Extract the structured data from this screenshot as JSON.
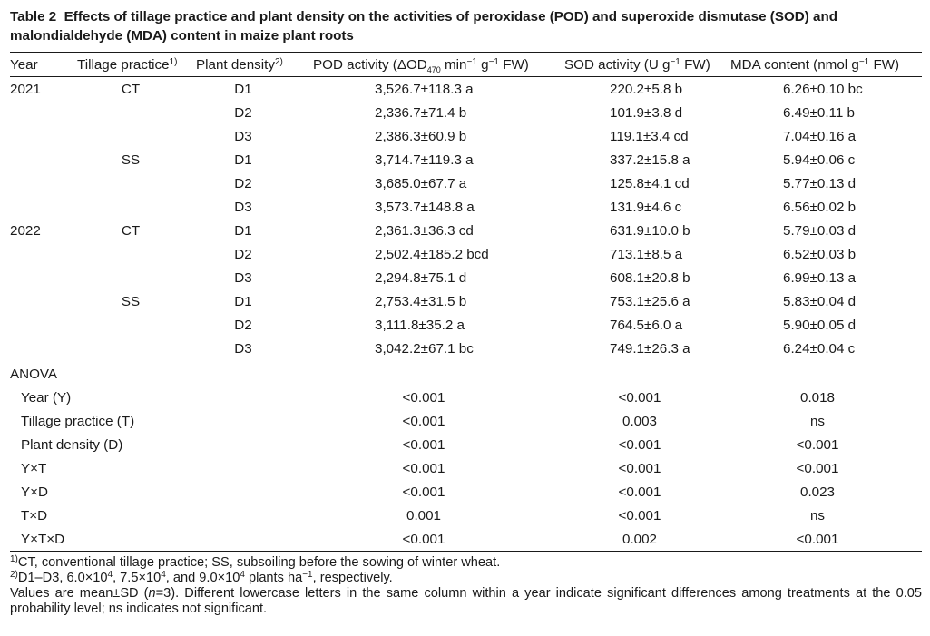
{
  "caption": {
    "label": "Table 2",
    "text": "Effects of tillage practice and plant density on the activities of peroxidase (POD) and superoxide dismutase (SOD) and malondialdehyde (MDA) content in maize plant roots"
  },
  "headers": {
    "year": "Year",
    "tillage": "Tillage practice",
    "tillage_sup": "1)",
    "density": "Plant density",
    "density_sup": "2)",
    "pod_pre": "POD activity (ΔOD",
    "pod_sub": "470",
    "pod_mid": " min",
    "pod_sup1": "−1",
    "pod_mid2": " g",
    "pod_sup2": "−1",
    "pod_post": " FW)",
    "sod_pre": "SOD activity (U g",
    "sod_sup": "−1",
    "sod_post": " FW)",
    "mda_pre": "MDA content (nmol g",
    "mda_sup": "−1",
    "mda_post": " FW)"
  },
  "rows": [
    {
      "year": "2021",
      "tillage": "CT",
      "density": "D1",
      "pod": "3,526.7±118.3 a",
      "sod": "220.2±5.8 b",
      "mda": "6.26±0.10 bc"
    },
    {
      "year": "",
      "tillage": "",
      "density": "D2",
      "pod": "2,336.7±71.4 b",
      "sod": "101.9±3.8 d",
      "mda": "6.49±0.11 b"
    },
    {
      "year": "",
      "tillage": "",
      "density": "D3",
      "pod": "2,386.3±60.9 b",
      "sod": "119.1±3.4 cd",
      "mda": "7.04±0.16 a"
    },
    {
      "year": "",
      "tillage": "SS",
      "density": "D1",
      "pod": "3,714.7±119.3 a",
      "sod": "337.2±15.8 a",
      "mda": "5.94±0.06 c"
    },
    {
      "year": "",
      "tillage": "",
      "density": "D2",
      "pod": "3,685.0±67.7 a",
      "sod": "125.8±4.1 cd",
      "mda": "5.77±0.13 d"
    },
    {
      "year": "",
      "tillage": "",
      "density": "D3",
      "pod": "3,573.7±148.8 a",
      "sod": "131.9±4.6 c",
      "mda": "6.56±0.02 b"
    },
    {
      "year": "2022",
      "tillage": "CT",
      "density": "D1",
      "pod": "2,361.3±36.3 cd",
      "sod": "631.9±10.0 b",
      "mda": "5.79±0.03 d"
    },
    {
      "year": "",
      "tillage": "",
      "density": "D2",
      "pod": "2,502.4±185.2 bcd",
      "sod": "713.1±8.5 a",
      "mda": "6.52±0.03 b"
    },
    {
      "year": "",
      "tillage": "",
      "density": "D3",
      "pod": "2,294.8±75.1 d",
      "sod": "608.1±20.8 b",
      "mda": "6.99±0.13 a"
    },
    {
      "year": "",
      "tillage": "SS",
      "density": "D1",
      "pod": "2,753.4±31.5 b",
      "sod": "753.1±25.6 a",
      "mda": "5.83±0.04 d"
    },
    {
      "year": "",
      "tillage": "",
      "density": "D2",
      "pod": "3,111.8±35.2 a",
      "sod": "764.5±6.0 a",
      "mda": "5.90±0.05 d"
    },
    {
      "year": "",
      "tillage": "",
      "density": "D3",
      "pod": "3,042.2±67.1 bc",
      "sod": "749.1±26.3 a",
      "mda": "6.24±0.04 c"
    }
  ],
  "anova": {
    "title": "ANOVA",
    "rows": [
      {
        "factor": "Year (Y)",
        "pod": "<0.001",
        "sod": "<0.001",
        "mda": "0.018"
      },
      {
        "factor": "Tillage practice (T)",
        "pod": "<0.001",
        "sod": "0.003",
        "mda": "ns"
      },
      {
        "factor": "Plant density (D)",
        "pod": "<0.001",
        "sod": "<0.001",
        "mda": "<0.001"
      },
      {
        "factor": "Y×T",
        "pod": "<0.001",
        "sod": "<0.001",
        "mda": "<0.001"
      },
      {
        "factor": "Y×D",
        "pod": "<0.001",
        "sod": "<0.001",
        "mda": "0.023"
      },
      {
        "factor": "T×D",
        "pod": "0.001",
        "sod": "<0.001",
        "mda": "ns"
      },
      {
        "factor": "Y×T×D",
        "pod": "<0.001",
        "sod": "0.002",
        "mda": "<0.001"
      }
    ]
  },
  "notes": {
    "n1_sup": "1)",
    "n1": "CT, conventional tillage practice; SS, subsoiling before the sowing of winter wheat.",
    "n2_sup": "2)",
    "n2_a": "D1–D3, 6.0×10",
    "n2_e": "4",
    "n2_b": ", 7.5×10",
    "n2_c": ", and 9.0×10",
    "n2_d": " plants ha",
    "n2_dsup": "−1",
    "n2_f": ", respectively.",
    "n3_a": "Values are mean±SD (",
    "n3_n": "n",
    "n3_b": "=3).  Different lowercase letters in the same column within a year indicate significant differences among treatments at the 0.05 probability level; ns indicates not significant."
  }
}
